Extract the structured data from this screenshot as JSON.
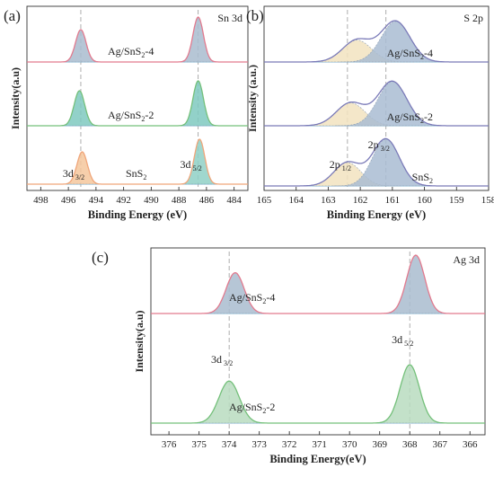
{
  "figure": {
    "panels": [
      {
        "id": "a",
        "panel_label": "(a)",
        "element": "Sn 3d",
        "xlabel": "Binding Energy (eV)",
        "ylabel": "Intensity(a.u)",
        "xlim": [
          499,
          483
        ],
        "xticks": [
          498,
          496,
          494,
          492,
          490,
          488,
          486,
          484
        ],
        "ref_lines": [
          495.1,
          486.6
        ],
        "components": [
          {
            "label": "3d",
            "sub": "3/2",
            "center": 495.1
          },
          {
            "label": "3d",
            "sub": "5/2",
            "center": 486.6
          }
        ],
        "samples": [
          {
            "name_main": "Ag/SnS",
            "name_sub": "2",
            "name_tail": "-4",
            "color": "#e27a8e",
            "peaks": [
              {
                "center": 495.1,
                "height": 0.72,
                "sigma": 0.38,
                "fill": "#a9bccf"
              },
              {
                "center": 486.6,
                "height": 1.0,
                "sigma": 0.38,
                "fill": "#a9bccf"
              }
            ]
          },
          {
            "name_main": "Ag/SnS",
            "name_sub": "2",
            "name_tail": "-2",
            "color": "#74c07a",
            "peaks": [
              {
                "center": 495.2,
                "height": 0.78,
                "sigma": 0.38,
                "fill": "#7fc9c0"
              },
              {
                "center": 486.6,
                "height": 1.0,
                "sigma": 0.38,
                "fill": "#7fc9c0"
              }
            ]
          },
          {
            "name_main": "SnS",
            "name_sub": "2",
            "name_tail": "",
            "color": "#f0a67a",
            "peaks": [
              {
                "center": 495.0,
                "height": 0.72,
                "sigma": 0.38,
                "fill": "#f5c79c"
              },
              {
                "center": 486.5,
                "height": 1.0,
                "sigma": 0.38,
                "fill": "#8fd0c6"
              }
            ]
          }
        ]
      },
      {
        "id": "b",
        "panel_label": "(b)",
        "element": "S 2p",
        "xlabel": "Binding Energy (eV)",
        "ylabel": "Intensity (a.u.)",
        "xlim": [
          165,
          158
        ],
        "xticks": [
          165,
          164,
          163,
          162,
          161,
          160,
          159,
          158
        ],
        "ref_lines": [
          162.4,
          161.2
        ],
        "components": [
          {
            "label": "2p",
            "sub": "1/2",
            "center": 162.4
          },
          {
            "label": "2p",
            "sub": "3/2",
            "center": 161.2
          }
        ],
        "samples": [
          {
            "name_main": "Ag/SnS",
            "name_sub": "2",
            "name_tail": "-4",
            "color": "#7a7ab8",
            "peaks": [
              {
                "center": 162.1,
                "height": 0.42,
                "sigma": 0.45,
                "fill": "#f2e3c0"
              },
              {
                "center": 160.9,
                "height": 0.78,
                "sigma": 0.45,
                "fill": "#a9bcd2"
              }
            ]
          },
          {
            "name_main": "Ag/SnS",
            "name_sub": "2",
            "name_tail": "-2",
            "color": "#7a7ab8",
            "peaks": [
              {
                "center": 162.3,
                "height": 0.44,
                "sigma": 0.45,
                "fill": "#f2e3c0"
              },
              {
                "center": 161.0,
                "height": 0.85,
                "sigma": 0.45,
                "fill": "#a9bcd2"
              }
            ]
          },
          {
            "name_main": "SnS",
            "name_sub": "2",
            "name_tail": "",
            "color": "#7a7ab8",
            "peaks": [
              {
                "center": 162.4,
                "height": 0.45,
                "sigma": 0.42,
                "fill": "#f2e3c0"
              },
              {
                "center": 161.2,
                "height": 0.9,
                "sigma": 0.42,
                "fill": "#a9bcd2"
              }
            ]
          }
        ]
      },
      {
        "id": "c",
        "panel_label": "(c)",
        "element": "Ag 3d",
        "xlabel": "Binding Energy(eV)",
        "ylabel": "Intensity(a.u)",
        "xlim": [
          376.6,
          365.5
        ],
        "xticks": [
          376,
          375,
          374,
          373,
          372,
          371,
          370,
          369,
          368,
          367,
          366
        ],
        "ref_lines": [
          374.0,
          368.0
        ],
        "components": [
          {
            "label": "3d",
            "sub": "3/2",
            "center": 374.0
          },
          {
            "label": "3d",
            "sub": "5/2",
            "center": 368.0
          }
        ],
        "samples": [
          {
            "name_main": "Ag/SnS",
            "name_sub": "2",
            "name_tail": "-4",
            "color": "#e27a8e",
            "peaks": [
              {
                "center": 373.8,
                "height": 0.7,
                "sigma": 0.3,
                "fill": "#a9bccf"
              },
              {
                "center": 367.8,
                "height": 1.0,
                "sigma": 0.3,
                "fill": "#a9bccf"
              }
            ]
          },
          {
            "name_main": "Ag/SnS",
            "name_sub": "2",
            "name_tail": "-2",
            "color": "#74c07a",
            "peaks": [
              {
                "center": 374.0,
                "height": 0.72,
                "sigma": 0.34,
                "fill": "#b9dcc0"
              },
              {
                "center": 368.0,
                "height": 1.0,
                "sigma": 0.32,
                "fill": "#b9dcc0"
              }
            ]
          }
        ]
      }
    ]
  }
}
